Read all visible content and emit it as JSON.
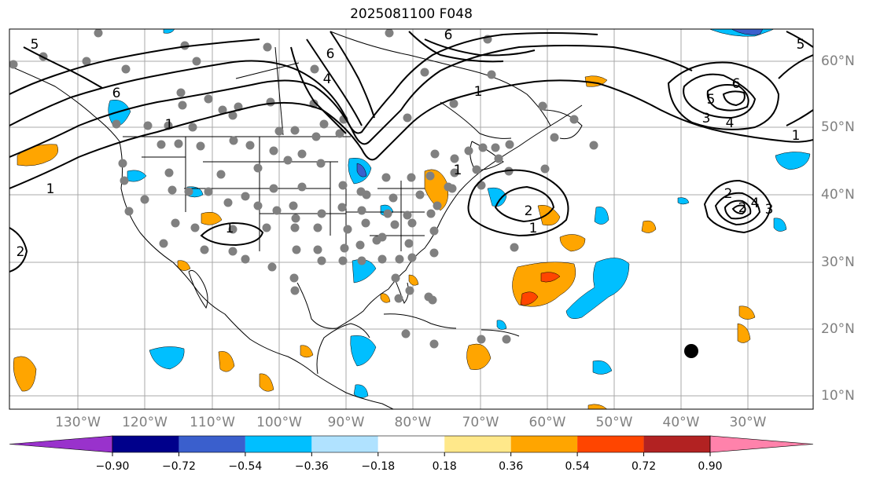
{
  "title": "2025081100 F048",
  "map": {
    "lon_labels": [
      "130°W",
      "120°W",
      "110°W",
      "100°W",
      "90°W",
      "80°W",
      "70°W",
      "60°W",
      "50°W",
      "40°W",
      "30°W"
    ],
    "lat_labels": [
      "60°N",
      "50°N",
      "40°N",
      "30°N",
      "20°N",
      "10°N"
    ],
    "contour_labels": [
      "5",
      "6",
      "6",
      "6",
      "4",
      "1",
      "1",
      "1",
      "1",
      "1",
      "1",
      "6",
      "5",
      "3",
      "4",
      "2",
      "1",
      "2",
      "2",
      "5",
      "3",
      "4",
      "2"
    ],
    "contour_color": "#000000",
    "station_dot_color": "#808080",
    "grid_color": "#a9a9a9"
  },
  "colorbar": {
    "colors": [
      "#9932cc",
      "#00008b",
      "#3a5fcd",
      "#00bfff",
      "#b0e2ff",
      "#ffffff",
      "#ffe88a",
      "#ffa500",
      "#ff4500",
      "#b22222",
      "#ff82ab"
    ],
    "ticks": [
      "−0.90",
      "−0.72",
      "−0.54",
      "−0.36",
      "−0.18",
      "0.18",
      "0.36",
      "0.54",
      "0.72",
      "0.90"
    ]
  }
}
